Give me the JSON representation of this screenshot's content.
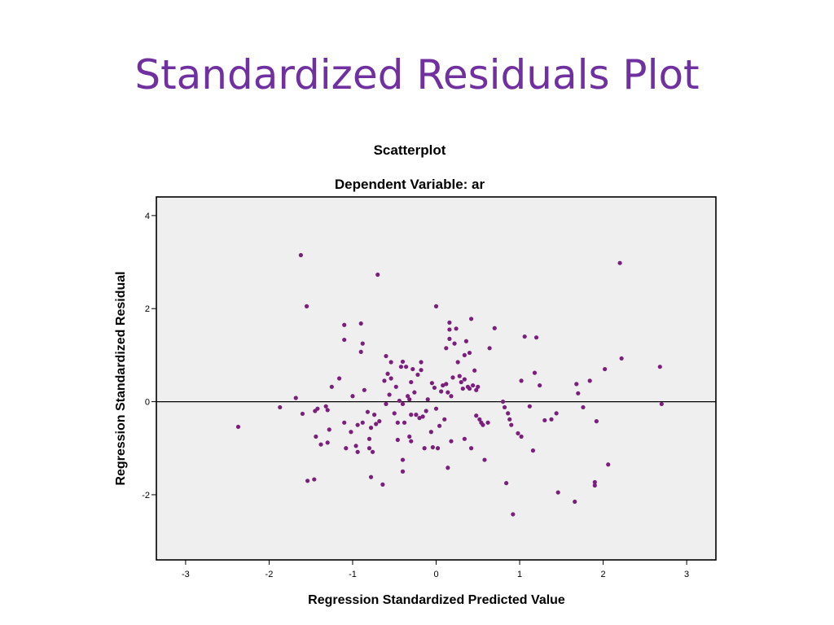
{
  "slide": {
    "title": "Standardized Residuals Plot"
  },
  "chart_data": {
    "type": "scatter",
    "title": "Scatterplot",
    "subtitle": "Dependent Variable: ar",
    "xlabel": "Regression Standardized Predicted Value",
    "ylabel": "Regression Standardized Residual",
    "xlim": [
      -3.35,
      3.35
    ],
    "ylim": [
      -3.4,
      4.4
    ],
    "x_ticks": [
      -3,
      -2,
      -1,
      0,
      1,
      2,
      3
    ],
    "y_ticks": [
      -2,
      0,
      2,
      4
    ],
    "reference_line_y": 0,
    "grid": false,
    "colors": {
      "plot_background": "#efefef",
      "marker": "#7a1f7a",
      "title": "#7030a0"
    },
    "points": [
      [
        -2.37,
        -0.54
      ],
      [
        -1.87,
        -0.12
      ],
      [
        -1.68,
        0.08
      ],
      [
        -1.62,
        3.15
      ],
      [
        -1.6,
        -0.26
      ],
      [
        -1.55,
        2.05
      ],
      [
        -1.54,
        -1.7
      ],
      [
        -1.46,
        -1.67
      ],
      [
        -1.45,
        -0.2
      ],
      [
        -1.44,
        -0.75
      ],
      [
        -1.42,
        -0.15
      ],
      [
        -1.38,
        -0.92
      ],
      [
        -1.32,
        -0.1
      ],
      [
        -1.3,
        -0.18
      ],
      [
        -1.3,
        -0.88
      ],
      [
        -1.28,
        -0.6
      ],
      [
        -1.25,
        0.32
      ],
      [
        -1.16,
        0.5
      ],
      [
        -1.1,
        1.65
      ],
      [
        -1.1,
        1.33
      ],
      [
        -1.1,
        -0.45
      ],
      [
        -1.08,
        -1.0
      ],
      [
        -1.02,
        -0.65
      ],
      [
        -1.0,
        0.12
      ],
      [
        -0.96,
        -0.95
      ],
      [
        -0.94,
        -0.5
      ],
      [
        -0.94,
        -1.08
      ],
      [
        -0.9,
        1.07
      ],
      [
        -0.9,
        1.68
      ],
      [
        -0.88,
        1.25
      ],
      [
        -0.88,
        -0.45
      ],
      [
        -0.86,
        0.25
      ],
      [
        -0.82,
        -0.22
      ],
      [
        -0.8,
        -0.8
      ],
      [
        -0.8,
        -1.0
      ],
      [
        -0.78,
        -1.62
      ],
      [
        -0.78,
        -0.56
      ],
      [
        -0.76,
        -1.08
      ],
      [
        -0.74,
        -0.28
      ],
      [
        -0.72,
        -0.48
      ],
      [
        -0.7,
        2.73
      ],
      [
        -0.68,
        -0.42
      ],
      [
        -0.64,
        -1.78
      ],
      [
        -0.62,
        0.45
      ],
      [
        -0.6,
        -0.05
      ],
      [
        -0.6,
        0.98
      ],
      [
        -0.58,
        0.6
      ],
      [
        -0.56,
        0.15
      ],
      [
        -0.54,
        0.5
      ],
      [
        -0.54,
        0.85
      ],
      [
        -0.5,
        -0.25
      ],
      [
        -0.48,
        0.32
      ],
      [
        -0.46,
        -0.82
      ],
      [
        -0.46,
        -0.45
      ],
      [
        -0.44,
        0.02
      ],
      [
        -0.42,
        0.75
      ],
      [
        -0.4,
        -0.05
      ],
      [
        -0.4,
        -1.5
      ],
      [
        -0.4,
        -1.25
      ],
      [
        -0.4,
        0.86
      ],
      [
        -0.38,
        -0.45
      ],
      [
        -0.36,
        0.75
      ],
      [
        -0.34,
        0.12
      ],
      [
        -0.32,
        -0.75
      ],
      [
        -0.32,
        0.05
      ],
      [
        -0.3,
        -0.85
      ],
      [
        -0.3,
        -0.28
      ],
      [
        -0.3,
        0.42
      ],
      [
        -0.28,
        0.7
      ],
      [
        -0.26,
        0.2
      ],
      [
        -0.24,
        -0.28
      ],
      [
        -0.22,
        0.58
      ],
      [
        -0.2,
        -0.35
      ],
      [
        -0.18,
        0.68
      ],
      [
        -0.18,
        0.85
      ],
      [
        -0.16,
        -0.32
      ],
      [
        -0.14,
        -1.0
      ],
      [
        -0.12,
        -0.2
      ],
      [
        -0.1,
        0.05
      ],
      [
        -0.06,
        -0.65
      ],
      [
        -0.05,
        0.4
      ],
      [
        -0.04,
        -0.98
      ],
      [
        -0.02,
        0.3
      ],
      [
        0.0,
        2.05
      ],
      [
        0.0,
        -0.15
      ],
      [
        0.02,
        -1.0
      ],
      [
        0.04,
        -0.52
      ],
      [
        0.06,
        0.22
      ],
      [
        0.08,
        0.35
      ],
      [
        0.1,
        -0.38
      ],
      [
        0.12,
        1.15
      ],
      [
        0.12,
        0.38
      ],
      [
        0.14,
        -1.42
      ],
      [
        0.14,
        0.2
      ],
      [
        0.16,
        1.35
      ],
      [
        0.16,
        1.55
      ],
      [
        0.16,
        1.7
      ],
      [
        0.18,
        0.12
      ],
      [
        0.18,
        -0.85
      ],
      [
        0.2,
        0.52
      ],
      [
        0.22,
        1.25
      ],
      [
        0.24,
        1.57
      ],
      [
        0.26,
        0.85
      ],
      [
        0.28,
        0.55
      ],
      [
        0.3,
        0.42
      ],
      [
        0.32,
        0.28
      ],
      [
        0.34,
        1.0
      ],
      [
        0.34,
        -0.8
      ],
      [
        0.34,
        0.48
      ],
      [
        0.36,
        1.3
      ],
      [
        0.38,
        0.32
      ],
      [
        0.4,
        1.05
      ],
      [
        0.4,
        0.28
      ],
      [
        0.42,
        -1.0
      ],
      [
        0.42,
        1.78
      ],
      [
        0.44,
        0.35
      ],
      [
        0.46,
        0.67
      ],
      [
        0.48,
        -0.3
      ],
      [
        0.48,
        0.25
      ],
      [
        0.5,
        0.32
      ],
      [
        0.52,
        -0.38
      ],
      [
        0.54,
        -0.45
      ],
      [
        0.56,
        -0.5
      ],
      [
        0.58,
        -1.25
      ],
      [
        0.62,
        -0.45
      ],
      [
        0.64,
        1.15
      ],
      [
        0.7,
        1.58
      ],
      [
        0.8,
        0.0
      ],
      [
        0.82,
        -0.12
      ],
      [
        0.84,
        -1.75
      ],
      [
        0.86,
        -0.25
      ],
      [
        0.88,
        -0.38
      ],
      [
        0.9,
        -0.5
      ],
      [
        0.92,
        -2.42
      ],
      [
        0.98,
        -0.68
      ],
      [
        1.02,
        0.45
      ],
      [
        1.02,
        -0.75
      ],
      [
        1.06,
        1.4
      ],
      [
        1.12,
        -0.1
      ],
      [
        1.16,
        -1.05
      ],
      [
        1.18,
        0.62
      ],
      [
        1.2,
        1.38
      ],
      [
        1.24,
        0.35
      ],
      [
        1.3,
        -0.4
      ],
      [
        1.38,
        -0.38
      ],
      [
        1.44,
        -0.25
      ],
      [
        1.46,
        -1.95
      ],
      [
        1.66,
        -2.15
      ],
      [
        1.68,
        0.38
      ],
      [
        1.7,
        0.18
      ],
      [
        1.76,
        -0.12
      ],
      [
        1.84,
        0.45
      ],
      [
        1.9,
        -1.8
      ],
      [
        1.9,
        -1.73
      ],
      [
        1.92,
        -0.42
      ],
      [
        2.02,
        0.7
      ],
      [
        2.06,
        -1.35
      ],
      [
        2.2,
        2.98
      ],
      [
        2.22,
        0.93
      ],
      [
        2.68,
        0.75
      ],
      [
        2.7,
        -0.05
      ]
    ]
  }
}
